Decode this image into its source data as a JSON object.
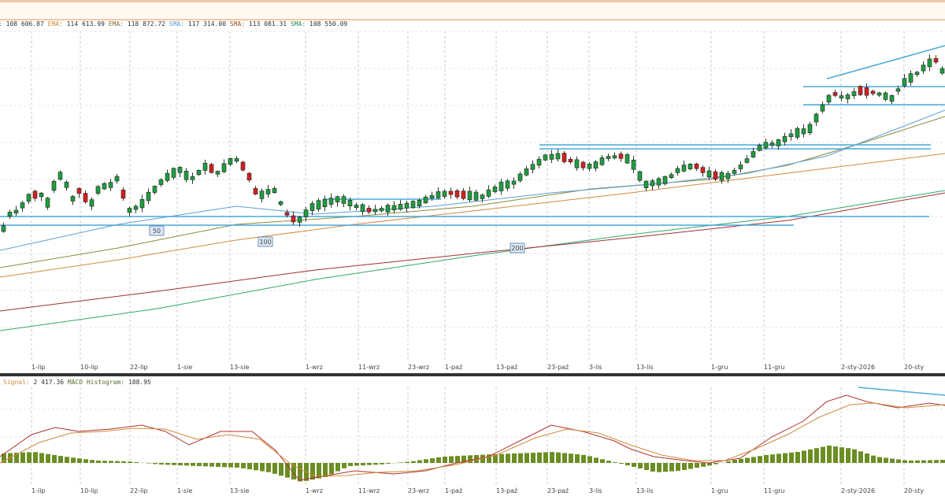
{
  "price_legend": [
    {
      "label": "",
      "value": "108 606.87",
      "color": "#3a7bbf"
    },
    {
      "label": "EMA:",
      "value": "114 613.99",
      "color": "#d08a3c"
    },
    {
      "label": "EMA:",
      "value": "118 872.72",
      "color": "#8a6a3a"
    },
    {
      "label": "SMA:",
      "value": "117 314.00",
      "color": "#5a9fd4"
    },
    {
      "label": "SMA:",
      "value": "113 081.31",
      "color": "#a0522d"
    },
    {
      "label": "SMA:",
      "value": "108 550.09",
      "color": "#2e8b57"
    }
  ],
  "macd_legend": [
    {
      "label": "Signal:",
      "value": "2 417.36",
      "color": "#d08a3c"
    },
    {
      "label": "MACD Histogram:",
      "value": "188.95",
      "color": "#556b2f"
    }
  ],
  "chart_data": [
    {
      "type": "candlestick",
      "x_labels": [
        "1-lip",
        "10-lip",
        "22-lip",
        "1-sie",
        "13-sie",
        "1-wrz",
        "11-wrz",
        "23-wrz",
        "1-paź",
        "13-paź",
        "23-paź",
        "3-lis",
        "13-lis",
        "1-gru",
        "11-gru",
        "2-sty-2026",
        "20-sty"
      ],
      "ma_labels": [
        "50",
        "100",
        "200"
      ],
      "candle_count": 150,
      "y_range": [
        0,
        1
      ],
      "grid": true,
      "colors": {
        "up": "#1e9e3e",
        "down": "#d42020",
        "ema_fast": "#d08a3c",
        "sma_blue": "#5a9fd4",
        "sma_olive": "#8a8a3a",
        "sma_red": "#a03030",
        "sma_green": "#2ea86a",
        "trendline": "#4aa8d8"
      }
    },
    {
      "type": "macd",
      "x_labels": [
        "1-lip",
        "10-lip",
        "22-lip",
        "1-sie",
        "13-sie",
        "1-wrz",
        "11-wrz",
        "23-wrz",
        "1-paź",
        "13-paź",
        "23-paź",
        "3-lis",
        "13-lis",
        "1-gru",
        "11-gru",
        "2-sty-2026",
        "20-sty"
      ],
      "colors": {
        "macd": "#b03030",
        "signal": "#d08a3c",
        "histogram": "#6b8e23"
      }
    }
  ]
}
